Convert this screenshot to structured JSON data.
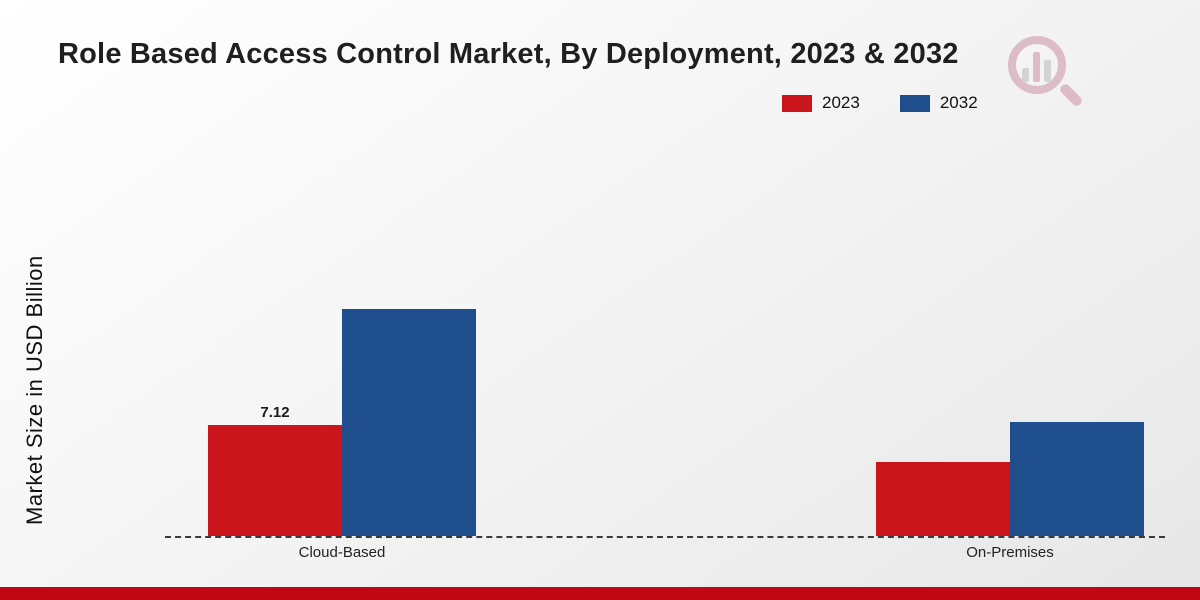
{
  "header": {
    "title": "Role Based Access Control Market, By Deployment, 2023 & 2032"
  },
  "legend": {
    "items": [
      {
        "label": "2023",
        "color": "#c9151b"
      },
      {
        "label": "2032",
        "color": "#1f4e8c"
      }
    ]
  },
  "chart_data": {
    "type": "bar",
    "title": "Role Based Access Control Market, By Deployment, 2023 & 2032",
    "categories": [
      "Cloud-Based",
      "On-Premises"
    ],
    "series": [
      {
        "name": "2023",
        "color": "#c9151b",
        "values": [
          7.12,
          4.7
        ],
        "labels": [
          "7.12",
          ""
        ]
      },
      {
        "name": "2032",
        "color": "#1f4e8c",
        "values": [
          14.5,
          7.3
        ],
        "labels": [
          "",
          ""
        ]
      }
    ],
    "xlabel": "",
    "ylabel": "Market Size in USD Billion",
    "ylim": [
      0,
      28
    ],
    "grid": false,
    "legend_position": "top-right",
    "baseline_style": "dashed",
    "value_label_note": "Only the 2023 Cloud-Based bar is labeled (7.12); other values estimated from bar heights"
  },
  "footer": {
    "accent_color": "#c10713"
  }
}
